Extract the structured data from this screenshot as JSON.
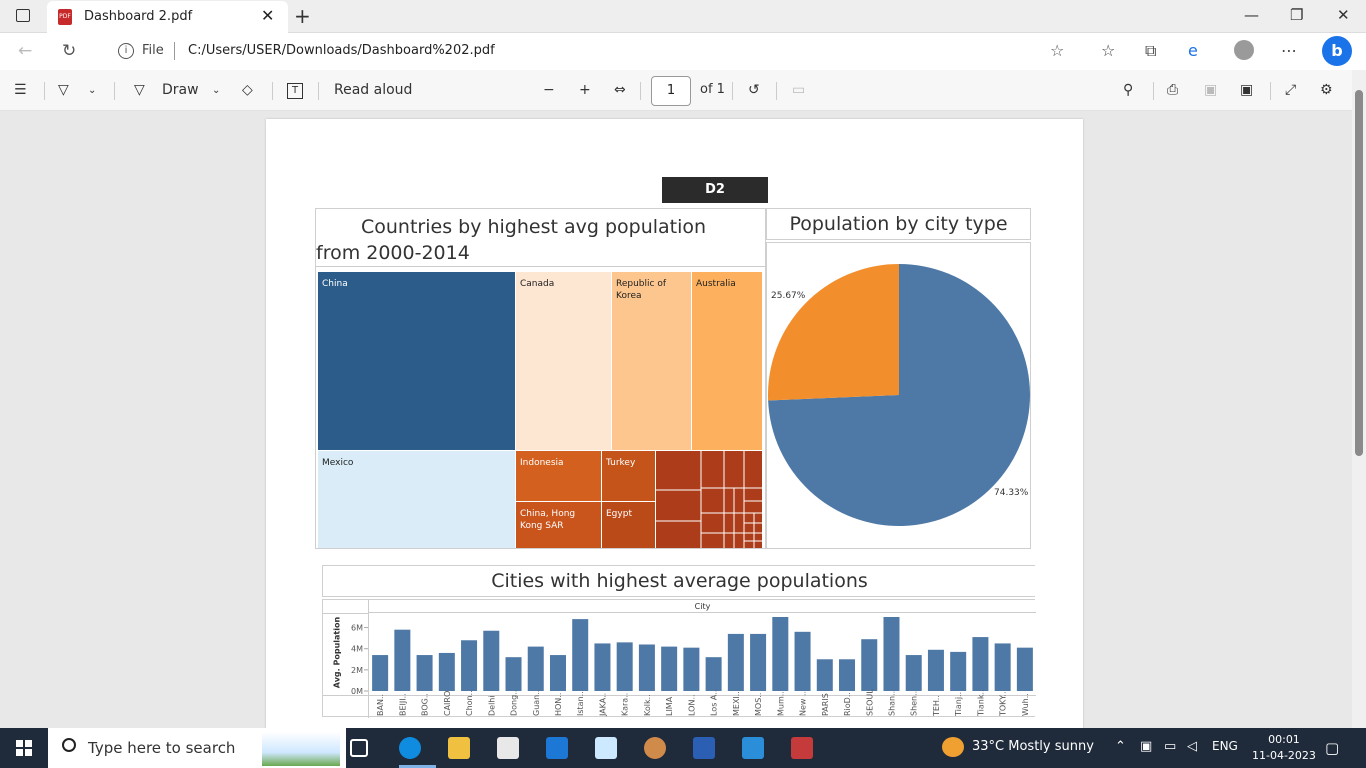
{
  "browser": {
    "tab_title": "Dashboard 2.pdf",
    "tab_icon_text": "PDF",
    "address": {
      "file_label": "File",
      "url": "C:/Users/USER/Downloads/Dashboard%202.pdf"
    }
  },
  "pdf_toolbar": {
    "draw_label": "Draw",
    "read_aloud_label": "Read aloud",
    "page_current": "1",
    "page_total": "of 1"
  },
  "dashboard": {
    "tag": "D2",
    "treemap": {
      "title": "Countries by highest avg population from 2000-2014",
      "labels": [
        "China",
        "Canada",
        "Republic of Korea",
        "Australia",
        "Mexico",
        "Indonesia",
        "Turkey",
        "China, Hong Kong SAR",
        "Egypt"
      ]
    },
    "pie": {
      "title": "Population by city type",
      "label_a": "25.67%",
      "label_b": "74.33%"
    },
    "bars": {
      "title": "Cities with highest average populations",
      "header": "City",
      "ylabel": "Avg. Population"
    }
  },
  "chart_data": [
    {
      "type": "pie",
      "title": "Population by city type",
      "values": [
        74.33,
        25.67
      ],
      "labels": [
        "74.33%",
        "25.67%"
      ],
      "colors": [
        "#4e79a7",
        "#f28e2b"
      ]
    },
    {
      "type": "bar",
      "title": "Cities with highest average populations",
      "xlabel": "City",
      "ylabel": "Avg. Population",
      "yticks": [
        "0M",
        "2M",
        "4M",
        "6M"
      ],
      "ylim": [
        0,
        7000000
      ],
      "categories": [
        "BAN..",
        "BEIJI..",
        "BOG..",
        "CAIRO",
        "Chon..",
        "Delhi",
        "Dong..",
        "Guan..",
        "HON..",
        "Istan..",
        "JAKA..",
        "Kara..",
        "Kolk..",
        "LIMA",
        "LON..",
        "Los A..",
        "MEXI..",
        "MOS..",
        "Mum..",
        "New ..",
        "PARIS",
        "RioD..",
        "SEOUL",
        "Shan..",
        "Shen..",
        "TEH..",
        "Tianj..",
        "Tiank..",
        "TOKY..",
        "Wuh.."
      ],
      "values": [
        3400000,
        5800000,
        3400000,
        3600000,
        4800000,
        5700000,
        3200000,
        4200000,
        3400000,
        6800000,
        4500000,
        4600000,
        4400000,
        4200000,
        4100000,
        3200000,
        5400000,
        5400000,
        7000000,
        5600000,
        3000000,
        3000000,
        4900000,
        7000000,
        3400000,
        3900000,
        3700000,
        5100000,
        4500000,
        4100000
      ],
      "color": "#4e79a7"
    }
  ],
  "taskbar": {
    "search_placeholder": "Type here to search",
    "weather": "33°C  Mostly sunny",
    "lang": "ENG",
    "time": "00:01",
    "date": "11-04-2023"
  }
}
